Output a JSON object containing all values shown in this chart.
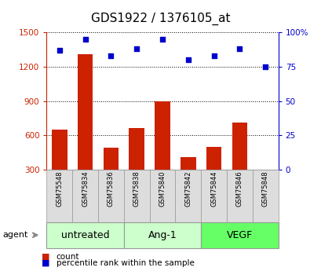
{
  "title": "GDS1922 / 1376105_at",
  "samples": [
    "GSM75548",
    "GSM75834",
    "GSM75836",
    "GSM75838",
    "GSM75840",
    "GSM75842",
    "GSM75844",
    "GSM75846",
    "GSM75848"
  ],
  "counts": [
    650,
    1310,
    490,
    660,
    900,
    410,
    500,
    710,
    290
  ],
  "percentiles": [
    87,
    95,
    83,
    88,
    95,
    80,
    83,
    88,
    75
  ],
  "groups": [
    {
      "label": "untreated",
      "start": 0,
      "end": 3,
      "color": "#ccffcc"
    },
    {
      "label": "Ang-1",
      "start": 3,
      "end": 6,
      "color": "#ccffcc"
    },
    {
      "label": "VEGF",
      "start": 6,
      "end": 9,
      "color": "#66ff66"
    }
  ],
  "ylim_left": [
    300,
    1500
  ],
  "ylim_right": [
    0,
    100
  ],
  "yticks_left": [
    300,
    600,
    900,
    1200,
    1500
  ],
  "yticks_right": [
    0,
    25,
    50,
    75,
    100
  ],
  "bar_color": "#cc2200",
  "dot_color": "#0000cc",
  "bar_width": 0.6,
  "grid_color": "#000000",
  "sample_box_color": "#dddddd",
  "legend_count_color": "#cc2200",
  "legend_pct_color": "#0000cc",
  "agent_label": "agent",
  "ylabel_left_color": "#cc2200",
  "ylabel_right_color": "#0000cc",
  "title_fontsize": 11,
  "tick_fontsize": 7.5,
  "sample_fontsize": 6,
  "group_label_fontsize": 9,
  "legend_fontsize": 7.5
}
